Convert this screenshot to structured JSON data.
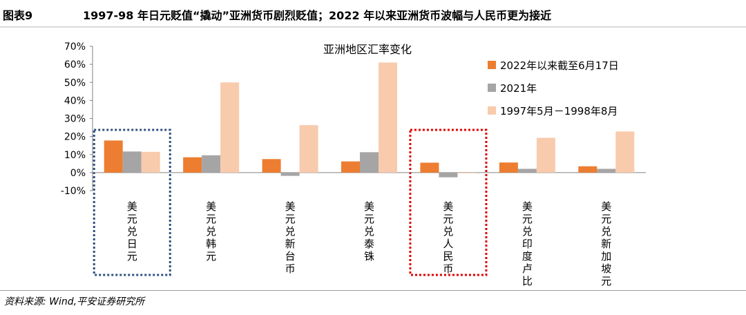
{
  "figure": {
    "label": "图表9",
    "title": "1997-98 年日元贬值“撬动”亚洲货币剧烈贬值；2022 年以来亚洲货币波幅与人民币更为接近",
    "source": "资料来源: Wind,平安证券研究所"
  },
  "chart_data": {
    "type": "bar",
    "title": "亚洲地区汇率变化",
    "xlabel": "",
    "ylabel": "",
    "ylim": [
      -10,
      70
    ],
    "y_ticks": [
      "-10%",
      "0%",
      "10%",
      "20%",
      "30%",
      "40%",
      "50%",
      "60%",
      "70%"
    ],
    "y_tick_values": [
      -10,
      0,
      10,
      20,
      30,
      40,
      50,
      60,
      70
    ],
    "categories": [
      "美元兑日元",
      "美元兑韩元",
      "美元兑新台币",
      "美元兑泰铢",
      "美元兑人民币",
      "美元兑印度卢比",
      "美元兑新加坡元"
    ],
    "series": [
      {
        "name": "2022年以来截至6月17日",
        "color": "#ed7d31",
        "values": [
          17.8,
          8.5,
          7.5,
          6.2,
          5.5,
          5.6,
          3.5
        ]
      },
      {
        "name": "2021年",
        "color": "#a5a5a5",
        "values": [
          11.7,
          9.6,
          -1.8,
          11.3,
          -2.6,
          2.1,
          2.1
        ]
      },
      {
        "name": "1997年5月－1998年8月",
        "color": "#f8cbad",
        "values": [
          11.5,
          50.0,
          26.3,
          61.0,
          -0.3,
          19.3,
          22.8
        ]
      }
    ],
    "legend": "top-right",
    "highlight_boxes": [
      {
        "category": "美元兑日元",
        "color": "#2e4f7e",
        "style": "dotted"
      },
      {
        "category": "美元兑人民币",
        "color": "#e00000",
        "style": "dotted"
      }
    ]
  }
}
